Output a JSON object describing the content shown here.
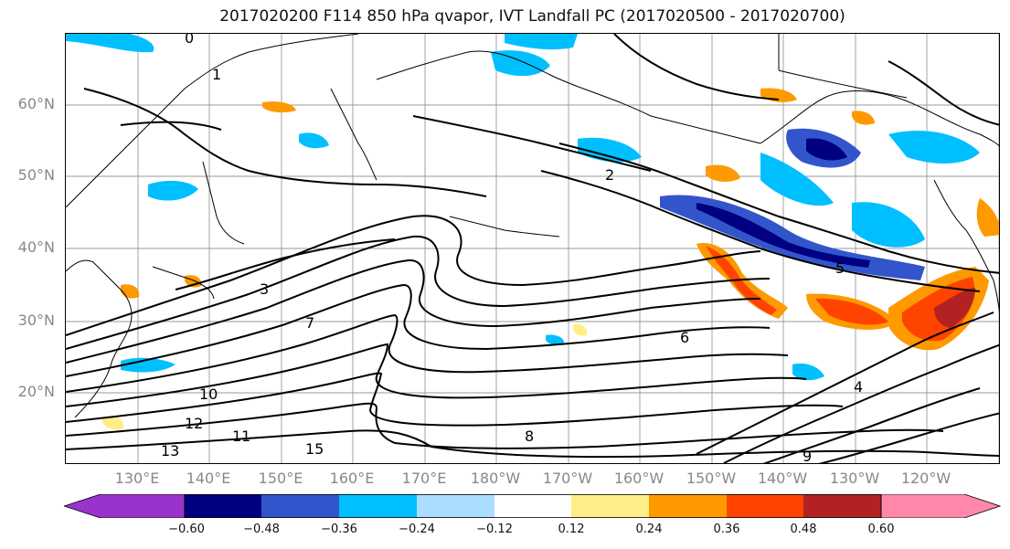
{
  "title": "2017020200 F114 850 hPa qvapor, IVT Landfall PC (2017020500 - 2017020700)",
  "lat_labels": [
    "60°N",
    "50°N",
    "40°N",
    "30°N",
    "20°N"
  ],
  "lon_labels": [
    "130°E",
    "140°E",
    "150°E",
    "160°E",
    "170°E",
    "180°W",
    "170°W",
    "160°W",
    "150°W",
    "140°W",
    "130°W",
    "120°W"
  ],
  "colorbar": {
    "ticks": [
      "−0.60",
      "−0.48",
      "−0.36",
      "−0.24",
      "−0.12",
      "0.12",
      "0.24",
      "0.36",
      "0.48",
      "0.60"
    ],
    "colors": [
      "#9933cc",
      "#000080",
      "#3355cc",
      "#00bfff",
      "#aaddff",
      "#ffffff",
      "#ffee88",
      "#ff9900",
      "#ff4400",
      "#b22222",
      "#ff88aa"
    ]
  },
  "contour_labels": [
    "0",
    "1",
    "2",
    "3",
    "4",
    "5",
    "6",
    "7",
    "8",
    "9",
    "10",
    "11",
    "12",
    "13",
    "15"
  ],
  "colors": {
    "grid": "#999999",
    "axis_label": "#888888"
  }
}
